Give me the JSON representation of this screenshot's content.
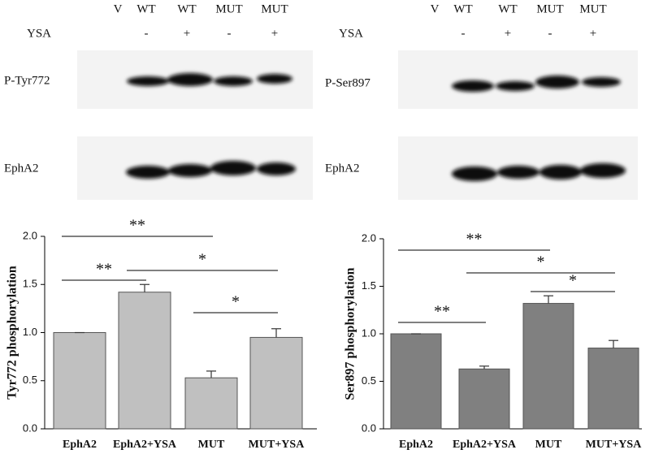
{
  "blots": [
    {
      "lanes": [
        "V",
        "WT",
        "WT",
        "MUT",
        "MUT"
      ],
      "treatment": "YSA",
      "signs": [
        "-",
        "+",
        "-",
        "+"
      ],
      "rows": [
        "P-Tyr772",
        "EphA2"
      ]
    },
    {
      "lanes": [
        "V",
        "WT",
        "WT",
        "MUT",
        "MUT"
      ],
      "treatment": "YSA",
      "signs": [
        "-",
        "+",
        "-",
        "+"
      ],
      "rows": [
        "P-Ser897",
        "EphA2"
      ]
    }
  ],
  "chart_data": [
    {
      "type": "bar",
      "ylabel": "Tyr772 phosphorylation",
      "categories": [
        "EphA2",
        "EphA2+YSA",
        "MUT",
        "MUT+YSA"
      ],
      "values": [
        1.0,
        1.42,
        0.53,
        0.95
      ],
      "errors": [
        0,
        0.08,
        0.07,
        0.09
      ],
      "color": "#c0c0c0",
      "ylim": [
        0,
        2
      ],
      "yticks": [
        {
          "value": 0,
          "label": "0.0"
        },
        0.5,
        {
          "value": 1,
          "label": "1.0"
        },
        1.5,
        {
          "value": 2,
          "label": "2.0"
        }
      ],
      "annotations": [
        {
          "text": "**",
          "between": [
            "EphA2",
            "MUT"
          ]
        },
        {
          "text": "**",
          "between": [
            "EphA2",
            "EphA2+YSA"
          ]
        },
        {
          "text": "*",
          "between": [
            "EphA2+YSA",
            "MUT+YSA"
          ]
        },
        {
          "text": "*",
          "between": [
            "MUT",
            "MUT+YSA"
          ]
        }
      ]
    },
    {
      "type": "bar",
      "ylabel": "Ser897 phosphorylation",
      "categories": [
        "EphA2",
        "EphA2+YSA",
        "MUT",
        "MUT+YSA"
      ],
      "values": [
        1.0,
        0.63,
        1.32,
        0.85
      ],
      "errors": [
        0,
        0.03,
        0.08,
        0.08
      ],
      "color": "#808080",
      "ylim": [
        0,
        2
      ],
      "yticks": [
        {
          "value": 0,
          "label": "0.0"
        },
        0.5,
        {
          "value": 1,
          "label": "1.0"
        },
        1.5,
        {
          "value": 2,
          "label": "2.0"
        }
      ],
      "annotations": [
        {
          "text": "**",
          "between": [
            "EphA2",
            "MUT"
          ]
        },
        {
          "text": "*",
          "between": [
            "EphA2+YSA",
            "MUT+YSA"
          ]
        },
        {
          "text": "*",
          "between": [
            "MUT",
            "MUT+YSA"
          ]
        },
        {
          "text": "**",
          "between": [
            "EphA2",
            "EphA2+YSA"
          ]
        }
      ]
    }
  ]
}
